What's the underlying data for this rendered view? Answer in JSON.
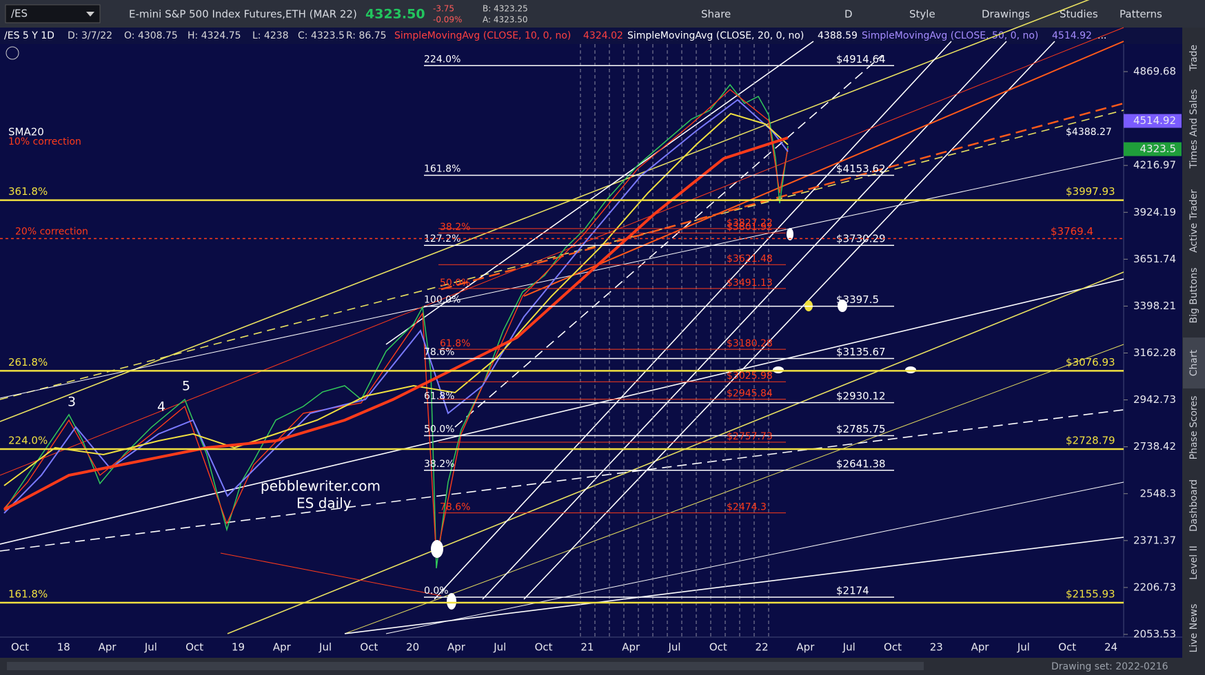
{
  "toolbar": {
    "symbol": "/ES",
    "description": "E-mini S&P 500 Index Futures,ETH (MAR 22)",
    "last": "4323.50",
    "change": "-3.75",
    "change_pct": "-0.09%",
    "bid": "B: 4323.25",
    "ask": "A: 4323.50",
    "buttons": [
      "Share",
      "D",
      "Style",
      "Drawings",
      "Studies",
      "Patterns"
    ]
  },
  "info_bar": {
    "symbol": "/ES 5 Y 1D",
    "date": "D: 3/7/22",
    "open": "O: 4308.75",
    "high": "H: 4324.75",
    "low": "L: 4238",
    "close": "C: 4323.5",
    "range": "R: 86.75",
    "sma10": "SimpleMovingAvg (CLOSE, 10, 0, no)",
    "sma10_value": "4324.02",
    "sma20": "SimpleMovingAvg (CLOSE, 20, 0, no)",
    "sma20_value": "4388.59",
    "sma50": "SimpleMovingAvg (CLOSE, 50, 0, no)",
    "sma50_value": "4514.92",
    "more": "..."
  },
  "price_axis": {
    "labels": [
      4869.68,
      4216.97,
      3924.19,
      3651.74,
      3398.21,
      3162.28,
      2942.73,
      2738.42,
      2548.3,
      2371.37,
      2206.73,
      2053.53
    ],
    "badges": [
      {
        "value": 4514.92,
        "color": "#7a5cff"
      },
      {
        "value": 4323.5,
        "color": "#1f9e3a"
      }
    ]
  },
  "time_axis": {
    "labels": [
      "Oct",
      "18",
      "Apr",
      "Jul",
      "Oct",
      "19",
      "Apr",
      "Jul",
      "Oct",
      "20",
      "Apr",
      "Jul",
      "Oct",
      "21",
      "Apr",
      "Jul",
      "Oct",
      "22",
      "Apr",
      "Jul",
      "Oct",
      "23",
      "Apr",
      "Jul",
      "Oct",
      "24"
    ]
  },
  "white_levels": [
    {
      "price": 4914.64,
      "label": "$4914.64",
      "fib": "224.0%"
    },
    {
      "price": 4153.62,
      "label": "$4153.62",
      "fib": "161.8%"
    },
    {
      "price": 3730.29,
      "label": "$3730.29",
      "fib": "127.2%"
    },
    {
      "price": 3397.5,
      "label": "$3397.5",
      "fib": "100.0%"
    },
    {
      "price": 3135.67,
      "label": "$3135.67",
      "fib": "78.6%"
    },
    {
      "price": 2930.12,
      "label": "$2930.12",
      "fib": "61.8%"
    },
    {
      "price": 2785.75,
      "label": "$2785.75",
      "fib": "50.0%"
    },
    {
      "price": 2641.38,
      "label": "$2641.38",
      "fib": "38.2%"
    },
    {
      "price": 2174,
      "label": "$2174",
      "fib": "0.0%"
    }
  ],
  "yellow_levels": [
    {
      "price": 3997.93,
      "label": "$3997.93",
      "fib": "361.8%"
    },
    {
      "price": 3076.93,
      "label": "$3076.93",
      "fib": "261.8%"
    },
    {
      "price": 2728.79,
      "label": "$2728.79",
      "fib": "224.0%"
    },
    {
      "price": 2155.93,
      "label": "$2155.93",
      "fib": "161.8%"
    }
  ],
  "red_line": {
    "price": 3769.4,
    "label": "$3769.4",
    "note": "20% correction"
  },
  "red_levels": [
    {
      "price": 3827.22,
      "label": "$3827.22"
    },
    {
      "price": 3801.92,
      "label": "$3801.92",
      "fib": "38.2%"
    },
    {
      "price": 3621.48,
      "label": "$3621.48"
    },
    {
      "price": 3491.13,
      "label": "$3491.13",
      "fib": "50.0%"
    },
    {
      "price": 3180.28,
      "label": "$3180.28",
      "fib": "61.8%"
    },
    {
      "price": 3025.98,
      "label": "$3025.98"
    },
    {
      "price": 2945.84,
      "label": "$2945.84"
    },
    {
      "price": 2757.73,
      "label": "$2757.73"
    },
    {
      "price": 2474.3,
      "label": "$2474.3",
      "fib": "78.6%"
    }
  ],
  "chart_notes": {
    "sma20": "SMA20",
    "correction10": "10% correction",
    "watermark1": "pebblewriter.com",
    "watermark2": "ES daily",
    "wave3": "3",
    "wave4": "4",
    "wave5": "5",
    "right_label": "$4388.27"
  },
  "side_tabs": [
    "Trade",
    "Times And Sales",
    "Active Trader",
    "Big Buttons",
    "Chart",
    "Phase Scores",
    "Dashboard",
    "Level II",
    "Live News"
  ],
  "footer": {
    "drawing_set": "Drawing set: 2022-0216"
  }
}
